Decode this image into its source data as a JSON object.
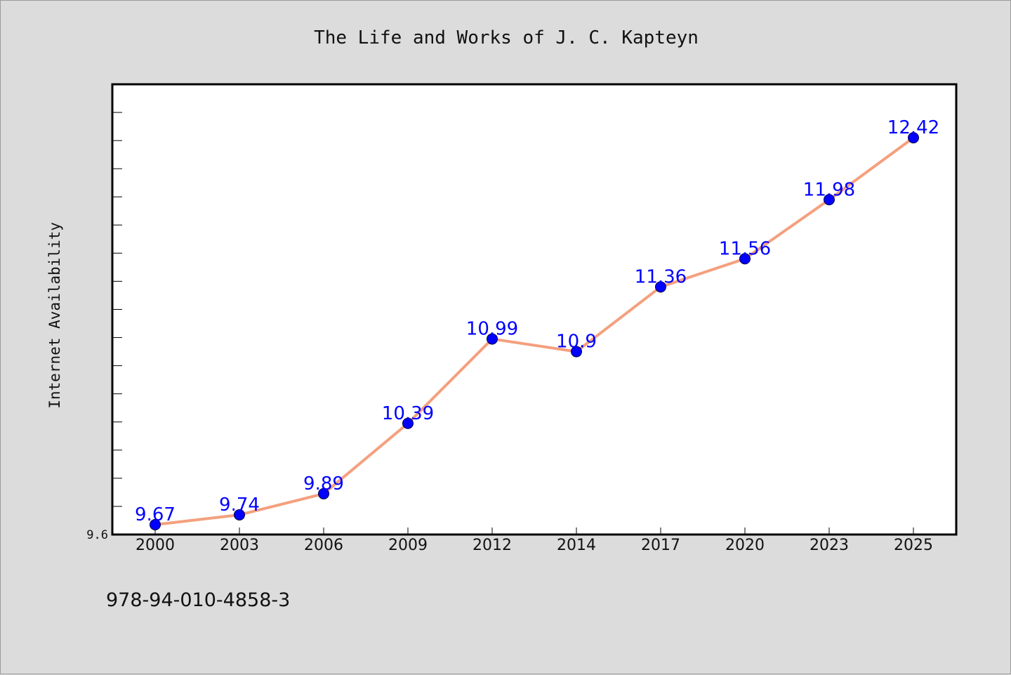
{
  "chart_data": {
    "type": "line",
    "title": "The Life and Works of J. C. Kapteyn",
    "xlabel": "",
    "ylabel": "Internet Availability",
    "categories": [
      "2000",
      "2003",
      "2006",
      "2009",
      "2012",
      "2014",
      "2017",
      "2020",
      "2023",
      "2025"
    ],
    "series": [
      {
        "values": [
          9.67,
          9.74,
          9.89,
          10.39,
          10.99,
          10.9,
          11.36,
          11.56,
          11.98,
          12.42
        ]
      }
    ],
    "data_labels": [
      "9.67",
      "9.74",
      "9.89",
      "10.39",
      "10.99",
      "10.9",
      "11.36",
      "11.56",
      "11.98",
      "12.42"
    ],
    "ylim": [
      9.6,
      12.8
    ],
    "ytick_labels": [
      {
        "value": 9.6,
        "label": "9.6"
      }
    ],
    "y_minor_tick_step": 0.2,
    "grid": false,
    "line_color": "#f4a07e",
    "marker_color": "#0000ff",
    "label_color": "#0000ff",
    "footnote": "978-94-010-4858-3"
  }
}
